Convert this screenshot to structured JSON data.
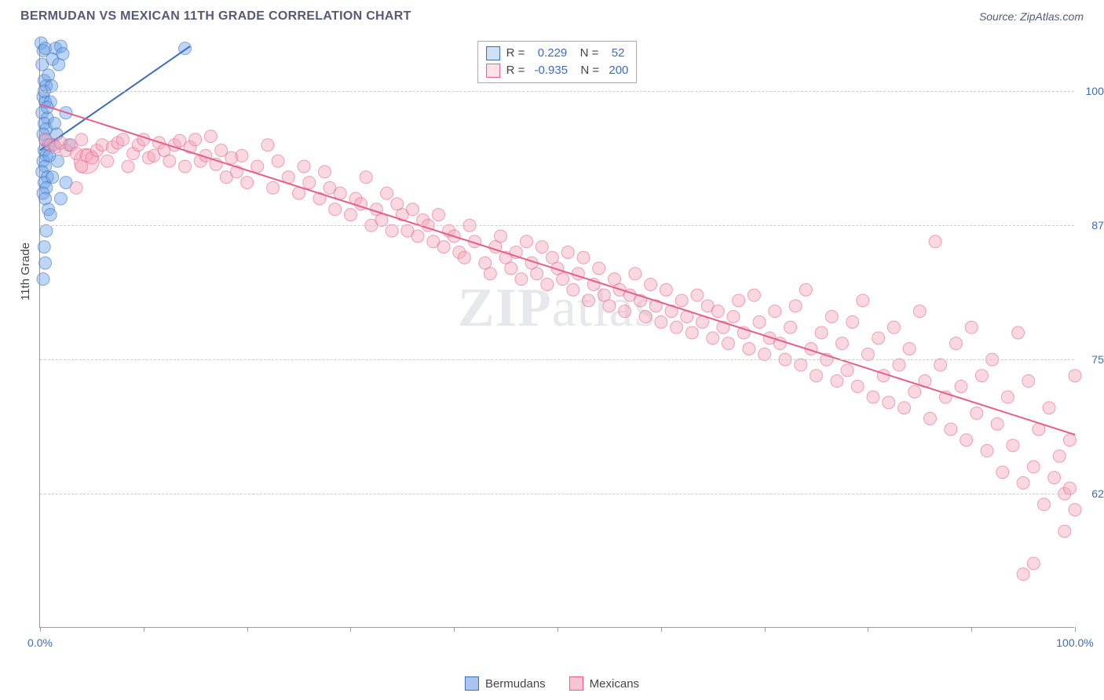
{
  "title": "BERMUDAN VS MEXICAN 11TH GRADE CORRELATION CHART",
  "source": "Source: ZipAtlas.com",
  "y_axis_title": "11th Grade",
  "watermark_bold": "ZIP",
  "watermark_light": "atlas",
  "chart": {
    "type": "scatter",
    "xlim": [
      0,
      100
    ],
    "ylim": [
      50,
      105
    ],
    "x_ticks": [
      0,
      10,
      20,
      30,
      40,
      50,
      60,
      70,
      80,
      90,
      100
    ],
    "x_tick_labels": {
      "0": "0.0%",
      "100": "100.0%"
    },
    "y_gridlines": [
      62.5,
      75.0,
      87.5,
      100.0
    ],
    "y_tick_labels": [
      "62.5%",
      "75.0%",
      "87.5%",
      "100.0%"
    ],
    "grid_color": "#cccccc",
    "axis_color": "#999999",
    "label_color": "#3b6db8",
    "background_color": "#ffffff",
    "marker_radius": 8,
    "marker_opacity": 0.45,
    "line_width": 2
  },
  "series": [
    {
      "name": "Bermudans",
      "color": "#6fa4e8",
      "stroke": "#3b6db8",
      "r_value": "0.229",
      "n_value": "52",
      "trend": {
        "x1": 0,
        "y1": 94.5,
        "x2": 14.5,
        "y2": 104.2
      },
      "points": [
        [
          0.1,
          104.5
        ],
        [
          0.3,
          103.8
        ],
        [
          0.5,
          104.0
        ],
        [
          0.2,
          102.5
        ],
        [
          0.4,
          101.0
        ],
        [
          0.6,
          100.5
        ],
        [
          0.3,
          99.5
        ],
        [
          0.5,
          99.0
        ],
        [
          0.2,
          98.0
        ],
        [
          0.7,
          97.5
        ],
        [
          0.4,
          97.0
        ],
        [
          0.6,
          96.5
        ],
        [
          0.3,
          96.0
        ],
        [
          0.5,
          95.5
        ],
        [
          0.8,
          95.0
        ],
        [
          0.4,
          94.5
        ],
        [
          0.6,
          94.0
        ],
        [
          0.3,
          93.5
        ],
        [
          0.5,
          93.0
        ],
        [
          0.2,
          92.5
        ],
        [
          0.7,
          92.0
        ],
        [
          0.4,
          91.5
        ],
        [
          0.6,
          91.0
        ],
        [
          0.3,
          90.5
        ],
        [
          0.5,
          90.0
        ],
        [
          1.5,
          104.0
        ],
        [
          1.2,
          103.0
        ],
        [
          1.8,
          102.5
        ],
        [
          1.0,
          99.0
        ],
        [
          2.0,
          104.2
        ],
        [
          2.2,
          103.5
        ],
        [
          2.5,
          98.0
        ],
        [
          1.3,
          95.0
        ],
        [
          1.7,
          93.5
        ],
        [
          2.8,
          95.0
        ],
        [
          0.8,
          89.0
        ],
        [
          1.0,
          88.5
        ],
        [
          0.6,
          87.0
        ],
        [
          0.4,
          85.5
        ],
        [
          0.5,
          84.0
        ],
        [
          0.3,
          82.5
        ],
        [
          2.0,
          90.0
        ],
        [
          2.5,
          91.5
        ],
        [
          0.4,
          100.0
        ],
        [
          0.8,
          101.5
        ],
        [
          1.1,
          100.5
        ],
        [
          1.4,
          97.0
        ],
        [
          1.6,
          96.0
        ],
        [
          0.9,
          94.0
        ],
        [
          1.2,
          92.0
        ],
        [
          14.0,
          104.0
        ],
        [
          0.7,
          98.5
        ]
      ]
    },
    {
      "name": "Mexicans",
      "color": "#f5a8bc",
      "stroke": "#e85d87",
      "r_value": "-0.935",
      "n_value": "200",
      "trend": {
        "x1": 0,
        "y1": 98.8,
        "x2": 100,
        "y2": 68.0
      },
      "points": [
        [
          0.5,
          95.5
        ],
        [
          1.0,
          95.0
        ],
        [
          1.5,
          94.8
        ],
        [
          2.0,
          95.2
        ],
        [
          2.5,
          94.5
        ],
        [
          3.0,
          95.0
        ],
        [
          3.5,
          94.2
        ],
        [
          4.0,
          95.5
        ],
        [
          4.5,
          94.0
        ],
        [
          5.0,
          93.8
        ],
        [
          5.5,
          94.5
        ],
        [
          6.0,
          95.0
        ],
        [
          6.5,
          93.5
        ],
        [
          7.0,
          94.8
        ],
        [
          7.5,
          95.2
        ],
        [
          8.0,
          95.5
        ],
        [
          8.5,
          93.0
        ],
        [
          9.0,
          94.2
        ],
        [
          9.5,
          95.0
        ],
        [
          10.0,
          95.5
        ],
        [
          10.5,
          93.8
        ],
        [
          11.0,
          94.0
        ],
        [
          11.5,
          95.2
        ],
        [
          12.0,
          94.5
        ],
        [
          12.5,
          93.5
        ],
        [
          13.0,
          95.0
        ],
        [
          13.5,
          95.4
        ],
        [
          14.0,
          93.0
        ],
        [
          14.5,
          94.8
        ],
        [
          15.0,
          95.5
        ],
        [
          15.5,
          93.5
        ],
        [
          16.0,
          94.0
        ],
        [
          16.5,
          95.8
        ],
        [
          17.0,
          93.2
        ],
        [
          17.5,
          94.5
        ],
        [
          18.0,
          92.0
        ],
        [
          18.5,
          93.8
        ],
        [
          19.0,
          92.5
        ],
        [
          19.5,
          94.0
        ],
        [
          20.0,
          91.5
        ],
        [
          21.0,
          93.0
        ],
        [
          22.0,
          95.0
        ],
        [
          22.5,
          91.0
        ],
        [
          23.0,
          93.5
        ],
        [
          24.0,
          92.0
        ],
        [
          25.0,
          90.5
        ],
        [
          25.5,
          93.0
        ],
        [
          26.0,
          91.5
        ],
        [
          27.0,
          90.0
        ],
        [
          27.5,
          92.5
        ],
        [
          28.0,
          91.0
        ],
        [
          28.5,
          89.0
        ],
        [
          29.0,
          90.5
        ],
        [
          30.0,
          88.5
        ],
        [
          30.5,
          90.0
        ],
        [
          31.0,
          89.5
        ],
        [
          31.5,
          92.0
        ],
        [
          32.0,
          87.5
        ],
        [
          32.5,
          89.0
        ],
        [
          33.0,
          88.0
        ],
        [
          33.5,
          90.5
        ],
        [
          34.0,
          87.0
        ],
        [
          34.5,
          89.5
        ],
        [
          35.0,
          88.5
        ],
        [
          35.5,
          87.0
        ],
        [
          36.0,
          89.0
        ],
        [
          36.5,
          86.5
        ],
        [
          37.0,
          88.0
        ],
        [
          37.5,
          87.5
        ],
        [
          38.0,
          86.0
        ],
        [
          38.5,
          88.5
        ],
        [
          39.0,
          85.5
        ],
        [
          39.5,
          87.0
        ],
        [
          40.0,
          86.5
        ],
        [
          40.5,
          85.0
        ],
        [
          41.0,
          84.5
        ],
        [
          41.5,
          87.5
        ],
        [
          42.0,
          86.0
        ],
        [
          43.0,
          84.0
        ],
        [
          43.5,
          83.0
        ],
        [
          44.0,
          85.5
        ],
        [
          44.5,
          86.5
        ],
        [
          45.0,
          84.5
        ],
        [
          45.5,
          83.5
        ],
        [
          46.0,
          85.0
        ],
        [
          46.5,
          82.5
        ],
        [
          47.0,
          86.0
        ],
        [
          47.5,
          84.0
        ],
        [
          48.0,
          83.0
        ],
        [
          48.5,
          85.5
        ],
        [
          49.0,
          82.0
        ],
        [
          49.5,
          84.5
        ],
        [
          50.0,
          83.5
        ],
        [
          50.5,
          82.5
        ],
        [
          51.0,
          85.0
        ],
        [
          51.5,
          81.5
        ],
        [
          52.0,
          83.0
        ],
        [
          52.5,
          84.5
        ],
        [
          53.0,
          80.5
        ],
        [
          53.5,
          82.0
        ],
        [
          54.0,
          83.5
        ],
        [
          54.5,
          81.0
        ],
        [
          55.0,
          80.0
        ],
        [
          55.5,
          82.5
        ],
        [
          56.0,
          81.5
        ],
        [
          56.5,
          79.5
        ],
        [
          57.0,
          81.0
        ],
        [
          57.5,
          83.0
        ],
        [
          58.0,
          80.5
        ],
        [
          58.5,
          79.0
        ],
        [
          59.0,
          82.0
        ],
        [
          59.5,
          80.0
        ],
        [
          60.0,
          78.5
        ],
        [
          60.5,
          81.5
        ],
        [
          61.0,
          79.5
        ],
        [
          61.5,
          78.0
        ],
        [
          62.0,
          80.5
        ],
        [
          62.5,
          79.0
        ],
        [
          63.0,
          77.5
        ],
        [
          63.5,
          81.0
        ],
        [
          64.0,
          78.5
        ],
        [
          64.5,
          80.0
        ],
        [
          65.0,
          77.0
        ],
        [
          65.5,
          79.5
        ],
        [
          66.0,
          78.0
        ],
        [
          66.5,
          76.5
        ],
        [
          67.0,
          79.0
        ],
        [
          67.5,
          80.5
        ],
        [
          68.0,
          77.5
        ],
        [
          68.5,
          76.0
        ],
        [
          69.0,
          81.0
        ],
        [
          69.5,
          78.5
        ],
        [
          70.0,
          75.5
        ],
        [
          70.5,
          77.0
        ],
        [
          71.0,
          79.5
        ],
        [
          71.5,
          76.5
        ],
        [
          72.0,
          75.0
        ],
        [
          72.5,
          78.0
        ],
        [
          73.0,
          80.0
        ],
        [
          73.5,
          74.5
        ],
        [
          74.0,
          81.5
        ],
        [
          74.5,
          76.0
        ],
        [
          75.0,
          73.5
        ],
        [
          75.5,
          77.5
        ],
        [
          76.0,
          75.0
        ],
        [
          76.5,
          79.0
        ],
        [
          77.0,
          73.0
        ],
        [
          77.5,
          76.5
        ],
        [
          78.0,
          74.0
        ],
        [
          78.5,
          78.5
        ],
        [
          79.0,
          72.5
        ],
        [
          79.5,
          80.5
        ],
        [
          80.0,
          75.5
        ],
        [
          80.5,
          71.5
        ],
        [
          81.0,
          77.0
        ],
        [
          81.5,
          73.5
        ],
        [
          82.0,
          71.0
        ],
        [
          82.5,
          78.0
        ],
        [
          83.0,
          74.5
        ],
        [
          83.5,
          70.5
        ],
        [
          84.0,
          76.0
        ],
        [
          84.5,
          72.0
        ],
        [
          85.0,
          79.5
        ],
        [
          85.5,
          73.0
        ],
        [
          86.0,
          69.5
        ],
        [
          86.5,
          86.0
        ],
        [
          87.0,
          74.5
        ],
        [
          87.5,
          71.5
        ],
        [
          88.0,
          68.5
        ],
        [
          88.5,
          76.5
        ],
        [
          89.0,
          72.5
        ],
        [
          89.5,
          67.5
        ],
        [
          90.0,
          78.0
        ],
        [
          90.5,
          70.0
        ],
        [
          91.0,
          73.5
        ],
        [
          91.5,
          66.5
        ],
        [
          92.0,
          75.0
        ],
        [
          92.5,
          69.0
        ],
        [
          93.0,
          64.5
        ],
        [
          93.5,
          71.5
        ],
        [
          94.0,
          67.0
        ],
        [
          94.5,
          77.5
        ],
        [
          95.0,
          63.5
        ],
        [
          95.5,
          73.0
        ],
        [
          96.0,
          65.0
        ],
        [
          96.5,
          68.5
        ],
        [
          97.0,
          61.5
        ],
        [
          97.5,
          70.5
        ],
        [
          98.0,
          64.0
        ],
        [
          98.5,
          66.0
        ],
        [
          99.0,
          59.0
        ],
        [
          99.0,
          62.5
        ],
        [
          99.5,
          63.0
        ],
        [
          99.5,
          67.5
        ],
        [
          100.0,
          61.0
        ],
        [
          100.0,
          73.5
        ],
        [
          96.0,
          56.0
        ],
        [
          95.0,
          55.0
        ],
        [
          4.0,
          93.0
        ],
        [
          3.5,
          91.0
        ]
      ],
      "large_point": [
        4.5,
        93.5
      ]
    }
  ],
  "legend_bottom": [
    {
      "label": "Bermudans",
      "fill": "#a8c5ef",
      "stroke": "#3b6db8"
    },
    {
      "label": "Mexicans",
      "fill": "#f7c4d2",
      "stroke": "#e85d87"
    }
  ]
}
